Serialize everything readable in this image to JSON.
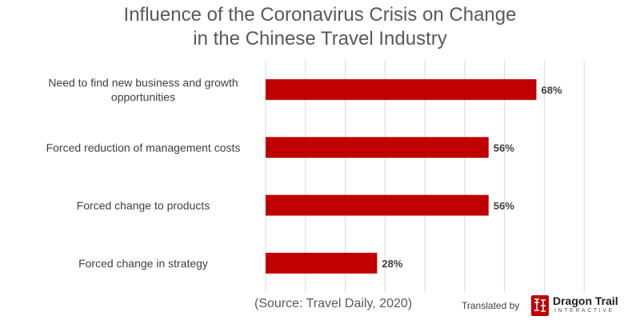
{
  "chart_data": {
    "type": "bar",
    "orientation": "horizontal",
    "title": "Influence of the Coronavirus Crisis on Change in the Chinese Travel Industry",
    "title_lines": [
      "Influence of the Coronavirus Crisis on Change",
      "in the Chinese Travel Industry"
    ],
    "categories": [
      [
        "Need to find new business and growth",
        "opportunities"
      ],
      [
        "Forced reduction of management costs"
      ],
      [
        "Forced change to products"
      ],
      [
        "Forced change in strategy"
      ]
    ],
    "values": [
      68,
      56,
      56,
      28
    ],
    "value_labels": [
      "68%",
      "56%",
      "56%",
      "28%"
    ],
    "unit": "%",
    "xlim": [
      0,
      90
    ],
    "gridlines": [
      0,
      10,
      20,
      30,
      40,
      50,
      60,
      70,
      80
    ],
    "xlabel": "",
    "ylabel": "",
    "legend": "none",
    "bar_color": "#c00000",
    "grid_color": "#d9d9d9"
  },
  "footer": {
    "source": "(Source: Travel Daily, 2020)",
    "credit": "Translated by",
    "logo_name": "Dragon Trail",
    "logo_sub": "INTERACTIVE",
    "logo_color": "#c00000"
  }
}
